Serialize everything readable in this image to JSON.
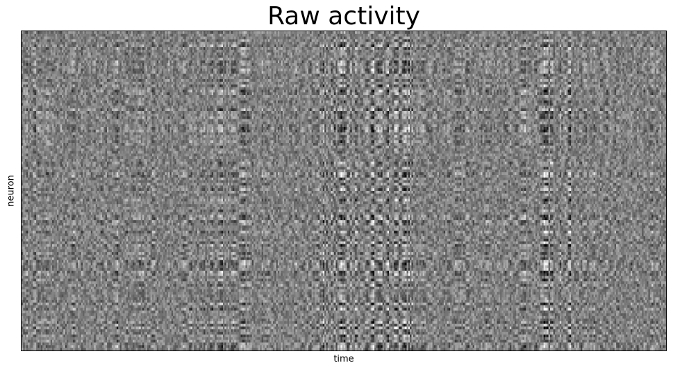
{
  "chart_data": {
    "type": "heatmap",
    "title": "Raw activity",
    "xlabel": "time",
    "ylabel": "neuron",
    "colormap": "gray",
    "colormap_low": "#000000",
    "colormap_high": "#ffffff",
    "ticks_visible": false,
    "grid": false,
    "n_rows": 120,
    "n_cols": 400,
    "seed": 7,
    "high_contrast_time_fraction_bands": [
      [
        0.54,
        0.61
      ],
      [
        0.8,
        0.85
      ],
      [
        0.46,
        0.53
      ]
    ]
  }
}
